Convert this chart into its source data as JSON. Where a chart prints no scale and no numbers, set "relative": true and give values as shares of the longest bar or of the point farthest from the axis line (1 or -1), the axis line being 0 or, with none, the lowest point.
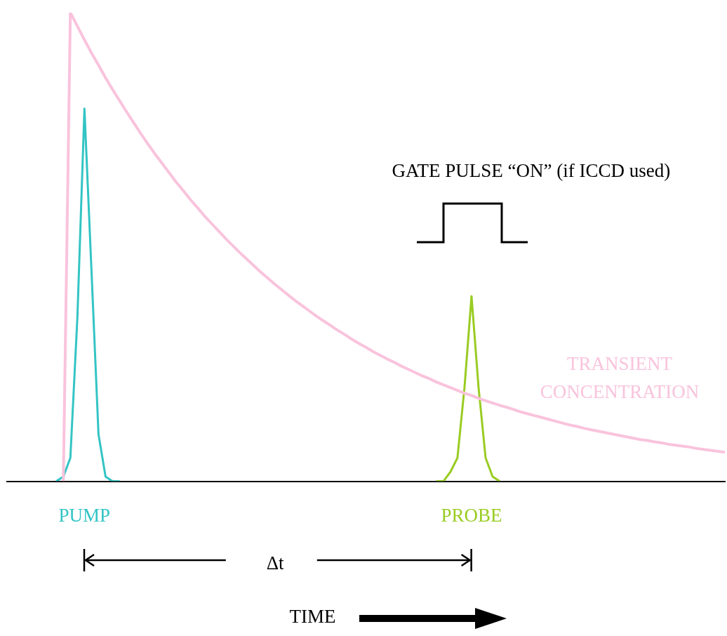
{
  "chart_data": {
    "type": "line",
    "relative": true,
    "annotations": [
      "GATE PULSE “ON” (if ICCD used)",
      "Δt",
      "TIME"
    ],
    "marker": "none",
    "categories": [
      null,
      null,
      null,
      null,
      null,
      null,
      null,
      null,
      null,
      null,
      null,
      null,
      null,
      null,
      null,
      null,
      null,
      null,
      null,
      null,
      null,
      null,
      null,
      null,
      null,
      null,
      null,
      null,
      null,
      null,
      null,
      null,
      null,
      null,
      null,
      null,
      null,
      null,
      null,
      null,
      null,
      null,
      null,
      null,
      null,
      null,
      null,
      null,
      null,
      null,
      null,
      null,
      null,
      null,
      null,
      null,
      null,
      null,
      null,
      null,
      null,
      null,
      null,
      null,
      null,
      null,
      null,
      null,
      null,
      null,
      null,
      null,
      null,
      null,
      null,
      null,
      null,
      null,
      null,
      null,
      null,
      null,
      null,
      null,
      null,
      null,
      null,
      null,
      null,
      null,
      null,
      null,
      null,
      null,
      null,
      null,
      null,
      null,
      null,
      null,
      null,
      null,
      null
    ],
    "series": [
      {
        "name": "TRANSIENT CONCENTRATION",
        "color": "#f9c3dc",
        "values": [
          null,
          null,
          null,
          null,
          null,
          null,
          null,
          null,
          0,
          1,
          0.971,
          0.942,
          0.914,
          0.888,
          0.861,
          0.836,
          0.812,
          0.788,
          0.765,
          0.742,
          0.72,
          0.699,
          0.679,
          0.659,
          0.639,
          0.621,
          0.602,
          0.585,
          0.567,
          0.551,
          0.535,
          0.519,
          0.504,
          0.489,
          0.475,
          0.461,
          0.447,
          0.434,
          0.421,
          0.409,
          0.397,
          0.385,
          0.374,
          0.363,
          0.352,
          0.342,
          0.332,
          0.322,
          0.313,
          0.303,
          0.294,
          0.286,
          0.277,
          0.269,
          0.261,
          0.254,
          0.246,
          0.239,
          0.232,
          0.225,
          0.219,
          0.212,
          0.206,
          0.2,
          0.194,
          0.188,
          0.183,
          0.177,
          0.172,
          0.167,
          0.162,
          0.158,
          0.153,
          0.148,
          0.144,
          0.14,
          0.136,
          0.132,
          0.128,
          0.124,
          0.12,
          0.117,
          0.113,
          0.11,
          0.107,
          0.104,
          0.101,
          0.098,
          0.095,
          0.092,
          0.089,
          0.087,
          0.084,
          0.082,
          0.079,
          0.077,
          0.075,
          0.073,
          0.07,
          0.068,
          0.066,
          0.064,
          0.062
        ]
      },
      {
        "name": "PUMP",
        "color": "#33c4c4",
        "values": [
          null,
          null,
          null,
          null,
          null,
          null,
          null,
          0,
          0.01,
          0.05,
          0.35,
          0.795,
          0.45,
          0.1,
          0.01,
          0,
          0,
          null,
          null,
          null,
          null,
          null,
          null,
          null,
          null,
          null,
          null,
          null,
          null,
          null,
          null,
          null,
          null,
          null,
          null,
          null,
          null,
          null,
          null,
          null,
          null,
          null,
          null,
          null,
          null,
          null,
          null,
          null,
          null,
          null,
          null,
          null,
          null,
          null,
          null,
          null,
          null,
          null,
          null,
          null,
          null,
          null,
          null,
          null,
          null,
          null,
          null,
          null,
          null,
          null,
          null,
          null,
          null,
          null,
          null,
          null,
          null,
          null,
          null,
          null,
          null,
          null,
          null,
          null,
          null,
          null,
          null,
          null,
          null,
          null,
          null,
          null,
          null,
          null,
          null,
          null,
          null,
          null,
          null,
          null,
          null,
          null,
          null
        ]
      },
      {
        "name": "PROBE",
        "color": "#99cc22",
        "values": [
          null,
          null,
          null,
          null,
          null,
          null,
          null,
          null,
          null,
          null,
          null,
          null,
          null,
          null,
          null,
          null,
          null,
          null,
          null,
          null,
          null,
          null,
          null,
          null,
          null,
          null,
          null,
          null,
          null,
          null,
          null,
          null,
          null,
          null,
          null,
          null,
          null,
          null,
          null,
          null,
          null,
          null,
          null,
          null,
          null,
          null,
          null,
          null,
          null,
          null,
          null,
          null,
          null,
          null,
          null,
          null,
          null,
          null,
          null,
          null,
          null,
          0,
          0,
          0.02,
          0.05,
          0.2,
          0.395,
          0.2,
          0.05,
          0.01,
          0,
          null,
          null,
          null,
          null,
          null,
          null,
          null,
          null,
          null,
          null,
          null,
          null,
          null,
          null,
          null,
          null,
          null,
          null,
          null,
          null,
          null,
          null,
          null,
          null,
          null,
          null,
          null,
          null,
          null,
          null,
          null,
          null
        ]
      }
    ]
  }
}
